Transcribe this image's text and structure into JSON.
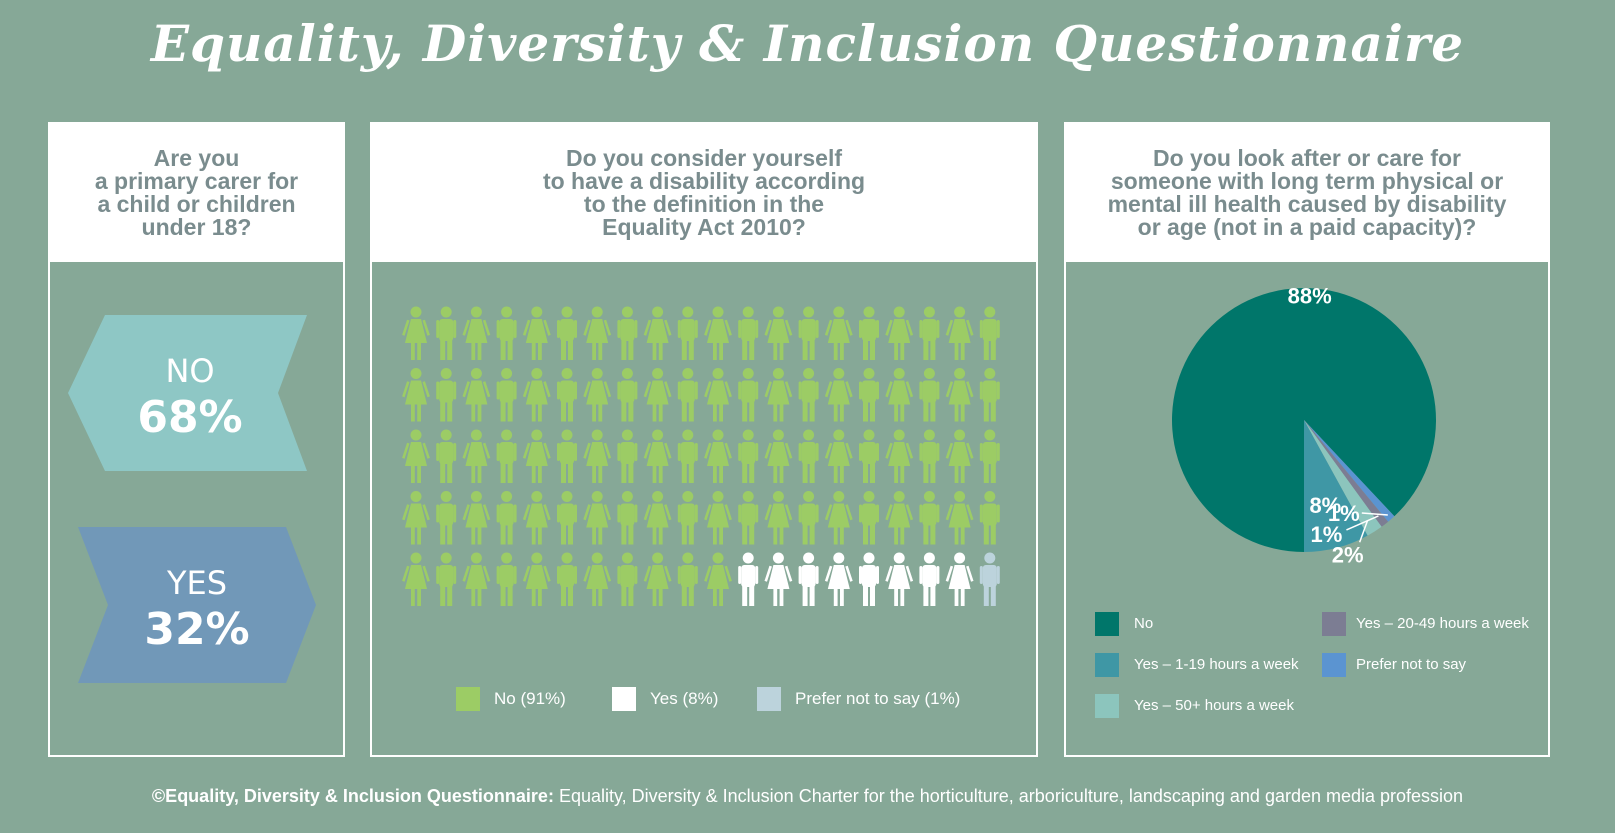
{
  "title": "Equality, Diversity & Inclusion Questionnaire",
  "panel1": {
    "question": "Are you\na primary carer for\na child or children\nunder 18?",
    "no_label": "NO",
    "no_pct": "68%",
    "yes_label": "YES",
    "yes_pct": "32%"
  },
  "panel2": {
    "question": "Do you consider yourself\nto have a disability according\nto the definition in the\nEquality Act 2010?",
    "legend": [
      {
        "label": "No (91%)",
        "color": "#9ccc65"
      },
      {
        "label": "Yes (8%)",
        "color": "#ffffff"
      },
      {
        "label": "Prefer not to say (1%)",
        "color": "#bcd3dc"
      }
    ]
  },
  "panel3": {
    "question": "Do you look after or care for\nsomeone with long term physical or\nmental ill health caused by disability\nor age (not in a paid capacity)?",
    "legend": [
      {
        "label": "No",
        "color": "#00766a"
      },
      {
        "label": "Yes – 20-49 hours a week",
        "color": "#7c7d93"
      },
      {
        "label": "Yes – 1-19 hours a week",
        "color": "#3f97a5"
      },
      {
        "label": "Prefer not to say",
        "color": "#5b94d1"
      },
      {
        "label": "Yes – 50+ hours a week",
        "color": "#8cc5bd"
      }
    ]
  },
  "footer": {
    "bold": "©Equality, Diversity & Inclusion Questionnaire:",
    "rest": " Equality, Diversity & Inclusion Charter for the horticulture, arboriculture, landscaping and garden media profession"
  },
  "chart_data": [
    {
      "type": "bar",
      "question": "Are you a primary carer for a child or children under 18?",
      "categories": [
        "NO",
        "YES"
      ],
      "values": [
        68,
        32
      ],
      "unit": "%"
    },
    {
      "type": "pictogram",
      "question": "Do you consider yourself to have a disability according to the definition in the Equality Act 2010?",
      "categories": [
        "No",
        "Yes",
        "Prefer not to say"
      ],
      "values": [
        91,
        8,
        1
      ],
      "colors": [
        "#9ccc65",
        "#ffffff",
        "#bcd3dc"
      ],
      "unit": "%"
    },
    {
      "type": "pie",
      "question": "Do you look after or care for someone with long term physical or mental ill health caused by disability or age (not in a paid capacity)?",
      "slices": [
        {
          "name": "No",
          "value": 88,
          "label": "88%",
          "color": "#00766a"
        },
        {
          "name": "Yes – 1-19 hours a week",
          "value": 8,
          "label": "8%",
          "color": "#3f97a5"
        },
        {
          "name": "Yes – 50+ hours a week",
          "value": 2,
          "label": "2%",
          "color": "#8cc5bd"
        },
        {
          "name": "Yes – 20-49 hours a week",
          "value": 1,
          "label": "1%",
          "color": "#7c7d93"
        },
        {
          "name": "Prefer not to say",
          "value": 1,
          "label": "1%",
          "color": "#5b94d1"
        }
      ]
    }
  ]
}
